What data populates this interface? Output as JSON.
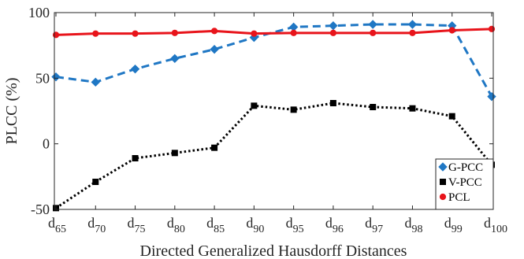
{
  "chart_data": {
    "type": "line",
    "title": "",
    "xlabel": "Directed Generalized Hausdorff Distances",
    "ylabel": "PLCC (%)",
    "ylim": [
      -50,
      100
    ],
    "yticks": [
      -50,
      0,
      50,
      100
    ],
    "grid": false,
    "legend_position": "bottom-right",
    "categories": [
      {
        "base": "d",
        "sub": "65"
      },
      {
        "base": "d",
        "sub": "70"
      },
      {
        "base": "d",
        "sub": "75"
      },
      {
        "base": "d",
        "sub": "80"
      },
      {
        "base": "d",
        "sub": "85"
      },
      {
        "base": "d",
        "sub": "90"
      },
      {
        "base": "d",
        "sub": "95"
      },
      {
        "base": "d",
        "sub": "96"
      },
      {
        "base": "d",
        "sub": "97"
      },
      {
        "base": "d",
        "sub": "98"
      },
      {
        "base": "d",
        "sub": "99"
      },
      {
        "base": "d",
        "sub": "100"
      }
    ],
    "series": [
      {
        "name": "G-PCC",
        "color": "#1f77c4",
        "line_style": "dashed",
        "marker": "diamond",
        "values": [
          51,
          47,
          57,
          65,
          72,
          81,
          89,
          90,
          91,
          91,
          90,
          36
        ]
      },
      {
        "name": "V-PCC",
        "color": "#000000",
        "line_style": "dotted",
        "marker": "square",
        "values": [
          -49,
          -29,
          -11,
          -7,
          -3,
          29,
          26,
          31,
          28,
          27,
          21,
          -16
        ]
      },
      {
        "name": "PCL",
        "color": "#e8141b",
        "line_style": "solid",
        "marker": "circle",
        "values": [
          83,
          84,
          84,
          84.5,
          86,
          84,
          84.5,
          84.5,
          84.5,
          84.5,
          86.5,
          87.5
        ]
      }
    ]
  }
}
